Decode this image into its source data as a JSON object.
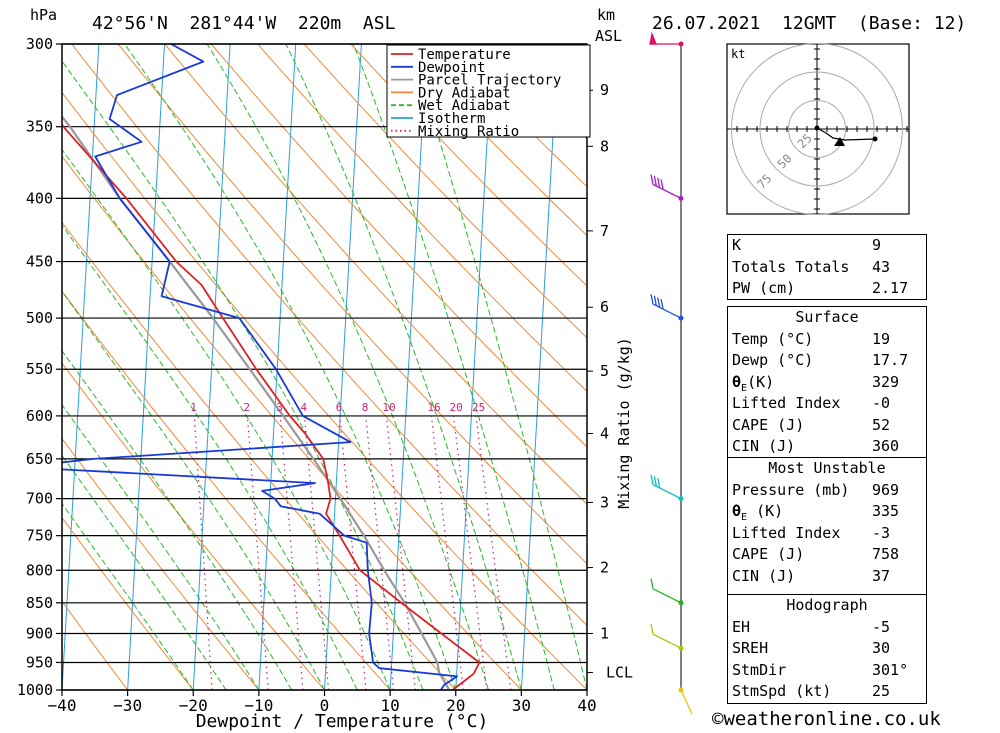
{
  "header": {
    "pressure_unit": "hPa",
    "location": "42°56'N  281°44'W  220m  ASL",
    "km_label": "km",
    "asl_label": "ASL",
    "datetime": "26.07.2021  12GMT  (Base: 12)"
  },
  "chart_data": {
    "type": "line",
    "title": "Skew-T log-P sounding",
    "xlabel": "Dewpoint / Temperature (°C)",
    "ylabel": "hPa",
    "mixing_axis_label": "Mixing Ratio (g/kg)",
    "xlim": [
      -40,
      40
    ],
    "ylim": [
      1000,
      300
    ],
    "x_ticks": [
      -40,
      -30,
      -20,
      -10,
      0,
      10,
      20,
      30,
      40
    ],
    "pressure_levels": [
      300,
      350,
      400,
      450,
      500,
      550,
      600,
      650,
      700,
      750,
      800,
      850,
      900,
      950,
      1000
    ],
    "km_ticks": [
      {
        "label": "9",
        "p": 327
      },
      {
        "label": "8",
        "p": 363
      },
      {
        "label": "7",
        "p": 425
      },
      {
        "label": "6",
        "p": 490
      },
      {
        "label": "5",
        "p": 552
      },
      {
        "label": "4",
        "p": 620
      },
      {
        "label": "3",
        "p": 705
      },
      {
        "label": "2",
        "p": 796
      },
      {
        "label": "1",
        "p": 900
      }
    ],
    "lcl": {
      "label": "LCL",
      "p": 968
    },
    "mixing_ratio_labels": [
      "1",
      "2",
      "3",
      "4",
      "6",
      "8",
      "10",
      "16",
      "20",
      "25"
    ],
    "mixing_ratio_values": [
      1,
      2,
      3,
      4,
      6,
      8,
      10,
      16,
      20,
      25
    ],
    "legend": [
      "Temperature",
      "Dewpoint",
      "Parcel Trajectory",
      "Dry Adiabat",
      "Wet Adiabat",
      "Isotherm",
      "Mixing Ratio"
    ],
    "colors": {
      "temperature": "#e02020",
      "dewpoint": "#1a3ad8",
      "parcel": "#999999",
      "dry_adiabat": "#f08a3a",
      "wet_adiabat": "#2ab82a",
      "isotherm": "#2aa0e0",
      "mixing_ratio": "#d0207a"
    },
    "series": [
      {
        "name": "Temperature",
        "points": [
          [
            1000,
            19.5
          ],
          [
            990,
            20.5
          ],
          [
            970,
            22.5
          ],
          [
            950,
            23.2
          ],
          [
            900,
            17
          ],
          [
            850,
            10.5
          ],
          [
            800,
            3.8
          ],
          [
            750,
            0.3
          ],
          [
            720,
            -2
          ],
          [
            700,
            -1.5
          ],
          [
            680,
            -2
          ],
          [
            650,
            -3
          ],
          [
            620,
            -6
          ],
          [
            600,
            -8.5
          ],
          [
            550,
            -14
          ],
          [
            500,
            -19.5
          ],
          [
            470,
            -23
          ],
          [
            450,
            -27
          ],
          [
            400,
            -35
          ],
          [
            350,
            -45
          ],
          [
            320,
            -50.5
          ],
          [
            300,
            -55.5
          ]
        ]
      },
      {
        "name": "Dewpoint",
        "points": [
          [
            1000,
            17.7
          ],
          [
            990,
            18.2
          ],
          [
            975,
            20
          ],
          [
            960,
            8
          ],
          [
            950,
            7
          ],
          [
            900,
            6
          ],
          [
            850,
            6
          ],
          [
            800,
            5
          ],
          [
            760,
            4.5
          ],
          [
            750,
            1
          ],
          [
            720,
            -3
          ],
          [
            710,
            -9
          ],
          [
            700,
            -10
          ],
          [
            690,
            -12
          ],
          [
            680,
            -4
          ],
          [
            660,
            -49
          ],
          [
            650,
            -38
          ],
          [
            630,
            1
          ],
          [
            600,
            -6.5
          ],
          [
            550,
            -11
          ],
          [
            500,
            -17
          ],
          [
            480,
            -29
          ],
          [
            450,
            -28
          ],
          [
            400,
            -36
          ],
          [
            370,
            -40
          ],
          [
            360,
            -33
          ],
          [
            345,
            -38
          ],
          [
            330,
            -37
          ],
          [
            310,
            -24
          ],
          [
            300,
            -29
          ]
        ]
      },
      {
        "name": "Parcel Trajectory",
        "points": [
          [
            1000,
            19
          ],
          [
            968,
            17.2
          ],
          [
            950,
            16.8
          ],
          [
            900,
            14
          ],
          [
            850,
            11
          ],
          [
            800,
            7.5
          ],
          [
            750,
            4
          ],
          [
            700,
            0
          ],
          [
            650,
            -4.5
          ],
          [
            600,
            -9.5
          ],
          [
            550,
            -15
          ],
          [
            500,
            -21
          ],
          [
            450,
            -28
          ],
          [
            400,
            -36
          ],
          [
            350,
            -44
          ],
          [
            300,
            -54.5
          ]
        ]
      }
    ],
    "wind_barbs": [
      {
        "p": 1000,
        "color": "#e8c800"
      },
      {
        "p": 925,
        "color": "#a8c800"
      },
      {
        "p": 850,
        "color": "#20b020"
      },
      {
        "p": 700,
        "color": "#10c0c0"
      },
      {
        "p": 500,
        "color": "#2050e0"
      },
      {
        "p": 400,
        "color": "#a020c0"
      },
      {
        "p": 300,
        "color": "#e0106a"
      }
    ]
  },
  "hodograph": {
    "unit": "kt",
    "rings": [
      "25",
      "50",
      "75"
    ]
  },
  "indices": {
    "k_label": "K",
    "k_value": "9",
    "tt_label": "Totals Totals",
    "tt_value": "43",
    "pw_label": "PW (cm)",
    "pw_value": "2.17"
  },
  "surface": {
    "title": "Surface",
    "temp_label": "Temp (°C)",
    "temp_value": "19",
    "dewp_label": "Dewp (°C)",
    "dewp_value": "17.7",
    "theta_label": "(K)",
    "theta_value": "329",
    "li_label": "Lifted Index",
    "li_value": "-0",
    "cape_label": "CAPE (J)",
    "cape_value": "52",
    "cin_label": "CIN (J)",
    "cin_value": "360"
  },
  "most_unstable": {
    "title": "Most Unstable",
    "pressure_label": "Pressure (mb)",
    "pressure_value": "969",
    "theta_label": "(K)",
    "theta_value": "335",
    "li_label": "Lifted Index",
    "li_value": "-3",
    "cape_label": "CAPE (J)",
    "cape_value": "758",
    "cin_label": "CIN (J)",
    "cin_value": "37"
  },
  "hodograph_table": {
    "title": "Hodograph",
    "eh_label": "EH",
    "eh_value": "-5",
    "sreh_label": "SREH",
    "sreh_value": "30",
    "stmdir_label": "StmDir",
    "stmdir_value": "301°",
    "stmspd_label": "StmSpd (kt)",
    "stmspd_value": "25"
  },
  "footer": {
    "copyright": "©weatheronline.co.uk"
  }
}
